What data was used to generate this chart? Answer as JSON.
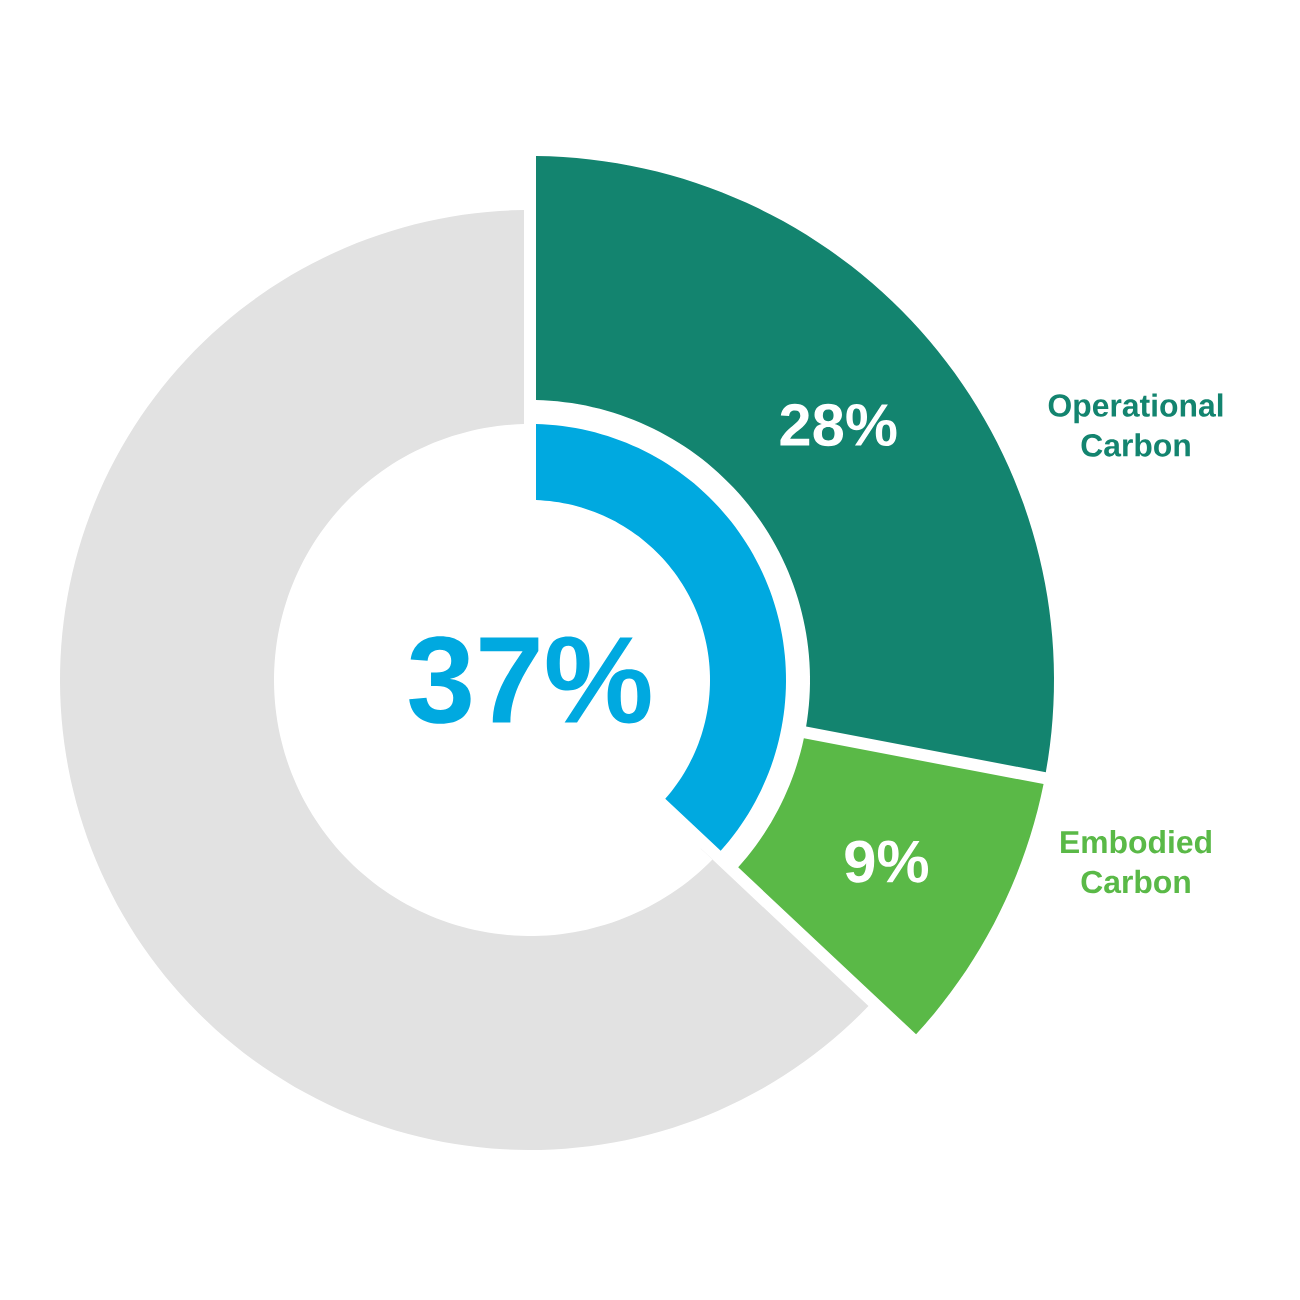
{
  "chart_data": {
    "type": "donut",
    "categories": [
      "Operational Carbon",
      "Embodied Carbon",
      null
    ],
    "series": [
      {
        "values": [
          28,
          9,
          63
        ],
        "colors": [
          "#13846f",
          "#5ab947",
          "#e2e2e2"
        ],
        "value_labels": [
          "28%",
          "9%",
          null
        ]
      },
      {
        "values": [
          37,
          null,
          63
        ],
        "colors": [
          "#00a9e0",
          null,
          "#ffffff"
        ]
      }
    ],
    "annotations": [
      "37%"
    ]
  }
}
